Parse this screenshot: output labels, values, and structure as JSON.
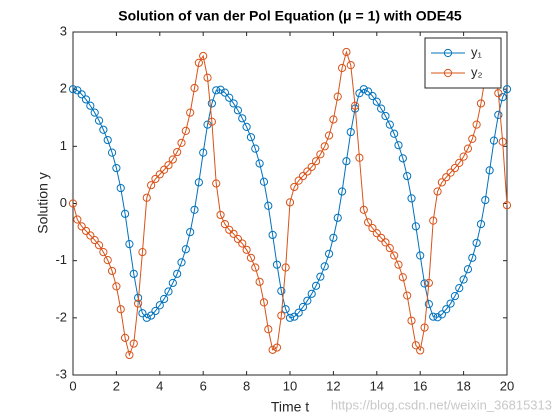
{
  "chart_data": {
    "type": "line",
    "title": "Solution of van der Pol Equation (μ = 1) with ODE45",
    "x_label": "Time t",
    "y_label": "Solution y",
    "watermark": "https://blog.csdn.net/weixin_36815313",
    "x": [
      0,
      0.2,
      0.4,
      0.6,
      0.8,
      1,
      1.2,
      1.4,
      1.6,
      1.8,
      2,
      2.2,
      2.4,
      2.6,
      2.8,
      3,
      3.2,
      3.4,
      3.6,
      3.8,
      4,
      4.2,
      4.4,
      4.6,
      4.8,
      5,
      5.2,
      5.4,
      5.6,
      5.8,
      6,
      6.2,
      6.4,
      6.6,
      6.8,
      7,
      7.2,
      7.4,
      7.6,
      7.8,
      8,
      8.2,
      8.4,
      8.6,
      8.8,
      9,
      9.2,
      9.4,
      9.6,
      9.8,
      10,
      10.2,
      10.4,
      10.6,
      10.8,
      11,
      11.2,
      11.4,
      11.6,
      11.8,
      12,
      12.2,
      12.4,
      12.6,
      12.8,
      13,
      13.2,
      13.4,
      13.6,
      13.8,
      14,
      14.2,
      14.4,
      14.6,
      14.8,
      15,
      15.2,
      15.4,
      15.6,
      15.8,
      16,
      16.2,
      16.4,
      16.6,
      16.8,
      17,
      17.2,
      17.4,
      17.6,
      17.8,
      18,
      18.2,
      18.4,
      18.6,
      18.8,
      19,
      19.2,
      19.4,
      19.6,
      19.8,
      20
    ],
    "series": [
      {
        "name": "y₁",
        "color": "#0072bd",
        "values": [
          2.0,
          1.98,
          1.91,
          1.82,
          1.71,
          1.59,
          1.45,
          1.29,
          1.11,
          0.89,
          0.62,
          0.27,
          -0.18,
          -0.71,
          -1.23,
          -1.65,
          -1.92,
          -2.0,
          -1.96,
          -1.88,
          -1.78,
          -1.67,
          -1.54,
          -1.39,
          -1.23,
          -1.03,
          -0.8,
          -0.5,
          -0.11,
          0.37,
          0.89,
          1.38,
          1.75,
          1.98,
          1.99,
          1.94,
          1.85,
          1.75,
          1.63,
          1.49,
          1.34,
          1.16,
          0.96,
          0.7,
          0.38,
          -0.04,
          -0.55,
          -1.07,
          -1.53,
          -1.85,
          -2.0,
          -1.98,
          -1.91,
          -1.81,
          -1.7,
          -1.58,
          -1.44,
          -1.28,
          -1.1,
          -0.88,
          -0.6,
          -0.25,
          0.21,
          0.74,
          1.25,
          1.66,
          1.93,
          2.0,
          1.96,
          1.88,
          1.78,
          1.66,
          1.53,
          1.38,
          1.22,
          1.02,
          0.79,
          0.48,
          0.09,
          -0.4,
          -0.91,
          -1.4,
          -1.76,
          -1.98,
          -1.99,
          -1.94,
          -1.85,
          -1.75,
          -1.62,
          -1.48,
          -1.33,
          -1.15,
          -0.95,
          -0.69,
          -0.36,
          0.06,
          0.58,
          1.1,
          1.55,
          1.86,
          2.0
        ]
      },
      {
        "name": "y₂",
        "color": "#d95319",
        "values": [
          0.0,
          -0.28,
          -0.4,
          -0.48,
          -0.56,
          -0.64,
          -0.73,
          -0.85,
          -0.99,
          -1.18,
          -1.45,
          -1.85,
          -2.35,
          -2.65,
          -2.45,
          -1.75,
          -0.85,
          0.1,
          0.32,
          0.43,
          0.51,
          0.59,
          0.67,
          0.77,
          0.9,
          1.06,
          1.27,
          1.59,
          2.02,
          2.46,
          2.58,
          2.2,
          1.43,
          0.35,
          -0.2,
          -0.36,
          -0.46,
          -0.53,
          -0.62,
          -0.7,
          -0.81,
          -0.95,
          -1.12,
          -1.37,
          -1.73,
          -2.2,
          -2.56,
          -2.52,
          -1.96,
          -1.12,
          0.02,
          0.29,
          0.4,
          0.48,
          0.56,
          0.64,
          0.74,
          0.86,
          1.0,
          1.19,
          1.47,
          1.87,
          2.37,
          2.65,
          2.42,
          1.71,
          0.8,
          -0.11,
          -0.33,
          -0.43,
          -0.52,
          -0.6,
          -0.68,
          -0.78,
          -0.91,
          -1.07,
          -1.29,
          -1.61,
          -2.05,
          -2.48,
          -2.57,
          -2.17,
          -1.39,
          -0.3,
          0.21,
          0.37,
          0.46,
          0.54,
          0.62,
          0.71,
          0.82,
          0.96,
          1.13,
          1.38,
          1.75,
          2.22,
          2.57,
          2.5,
          1.93,
          1.08,
          -0.03
        ]
      }
    ],
    "xlim": [
      0,
      20
    ],
    "xticks": [
      0,
      2,
      4,
      6,
      8,
      10,
      12,
      14,
      16,
      18,
      20
    ],
    "ylim": [
      -3,
      3
    ],
    "yticks": [
      -3,
      -2,
      -1,
      0,
      1,
      2,
      3
    ],
    "legend": "top-right",
    "marker": "circle"
  }
}
